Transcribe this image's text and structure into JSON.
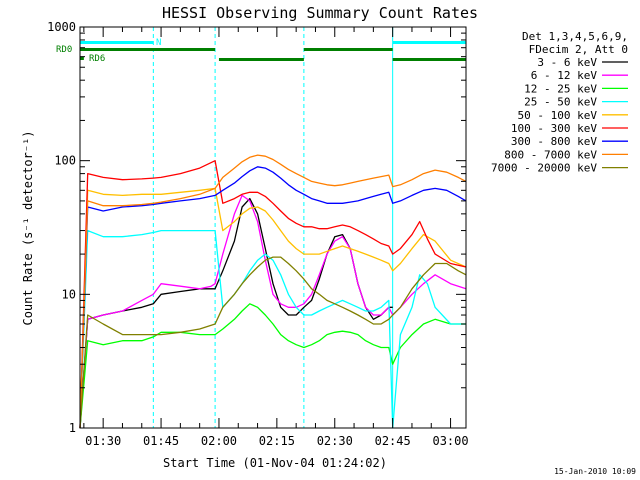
{
  "chart_data": {
    "type": "line",
    "title": "HESSI Observing Summary Count Rates",
    "xlabel": "Start Time (01-Nov-04 01:24:02)",
    "ylabel": "Count Rate (s⁻¹ detector⁻¹)",
    "yscale": "log",
    "ylim": [
      1,
      1000
    ],
    "xlim_minutes": [
      84,
      184
    ],
    "x_ticks": [
      {
        "label": "01:30",
        "minutes": 90
      },
      {
        "label": "01:45",
        "minutes": 105
      },
      {
        "label": "02:00",
        "minutes": 120
      },
      {
        "label": "02:15",
        "minutes": 135
      },
      {
        "label": "02:30",
        "minutes": 150
      },
      {
        "label": "02:45",
        "minutes": 165
      },
      {
        "label": "03:00",
        "minutes": 180
      }
    ],
    "y_ticks": [
      {
        "label": "1",
        "value": 1
      },
      {
        "label": "10",
        "value": 10
      },
      {
        "label": "100",
        "value": 100
      },
      {
        "label": "1000",
        "value": 1000
      }
    ],
    "legend_header": [
      "Det 1,3,4,5,6,9,",
      "FDecim 2, Att 0"
    ],
    "legend_position": "right",
    "grid": false,
    "timestamp": "15-Jan-2010 10:09",
    "flags": [
      {
        "label": "N",
        "color": "#00ffff",
        "segments": [
          [
            84,
            103
          ],
          [
            165,
            184
          ]
        ]
      },
      {
        "label": "RD0",
        "color": "#007f00",
        "segments": [
          [
            84,
            119
          ],
          [
            120,
            142
          ],
          [
            142,
            165
          ],
          [
            165,
            184
          ]
        ]
      },
      {
        "label": "RD6",
        "color": "#007f00",
        "segments": [
          [
            84,
            85
          ]
        ]
      }
    ],
    "vlines_solid_minutes": [
      84,
      165
    ],
    "vlines_dashed_minutes": [
      103,
      119,
      142,
      184
    ],
    "series": [
      {
        "name": "3 - 6 keV",
        "color": "#000000",
        "x": [
          84,
          86,
          90,
          95,
          100,
          103,
          105,
          110,
          115,
          118,
          119,
          121,
          124,
          126,
          128,
          130,
          132,
          134,
          136,
          138,
          140,
          142,
          144,
          146,
          148,
          150,
          152,
          154,
          156,
          158,
          160,
          162,
          164,
          165
        ],
        "y": [
          0,
          6.5,
          7,
          7.5,
          8,
          8.5,
          10,
          10.5,
          11,
          11,
          11,
          15,
          25,
          45,
          52,
          40,
          22,
          12,
          8,
          7,
          7,
          8,
          9,
          13,
          20,
          27,
          28,
          22,
          12,
          8,
          6.5,
          7,
          8,
          8
        ]
      },
      {
        "name": "6 - 12 keV",
        "color": "#ff00ff",
        "x": [
          84,
          86,
          90,
          95,
          100,
          103,
          105,
          110,
          115,
          118,
          119,
          121,
          124,
          126,
          128,
          130,
          132,
          134,
          136,
          138,
          140,
          142,
          144,
          146,
          148,
          150,
          152,
          154,
          156,
          158,
          160,
          162,
          164,
          165,
          167,
          170,
          173,
          176,
          180,
          184
        ],
        "y": [
          0,
          6.5,
          7,
          7.5,
          9,
          10,
          12,
          11.5,
          11,
          11.5,
          12,
          20,
          40,
          55,
          50,
          35,
          18,
          10,
          8.5,
          8,
          8,
          8.5,
          10,
          14,
          20,
          25,
          27,
          22,
          12,
          8,
          7,
          7,
          8,
          7,
          8,
          10,
          12,
          14,
          12,
          11
        ]
      },
      {
        "name": "12 - 25 keV",
        "color": "#00ff00",
        "x": [
          84,
          86,
          90,
          95,
          100,
          103,
          105,
          110,
          115,
          119,
          121,
          124,
          126,
          128,
          130,
          132,
          134,
          136,
          138,
          140,
          142,
          144,
          146,
          148,
          150,
          152,
          154,
          156,
          158,
          160,
          162,
          164,
          165,
          167,
          170,
          173,
          176,
          180,
          184
        ],
        "y": [
          0,
          4.5,
          4.2,
          4.5,
          4.5,
          4.8,
          5.2,
          5.2,
          5,
          5,
          5.5,
          6.5,
          7.5,
          8.5,
          8,
          7,
          6,
          5,
          4.5,
          4.2,
          4,
          4.2,
          4.5,
          5,
          5.2,
          5.3,
          5.2,
          5,
          4.5,
          4.2,
          4,
          4,
          3,
          4,
          5,
          6,
          6.5,
          6,
          6
        ]
      },
      {
        "name": "25 - 50 keV",
        "color": "#00ffff",
        "x": [
          84,
          86,
          90,
          95,
          100,
          103,
          105,
          110,
          115,
          119,
          121,
          124,
          126,
          128,
          130,
          132,
          134,
          136,
          138,
          140,
          142,
          144,
          146,
          148,
          150,
          152,
          154,
          156,
          158,
          160,
          162,
          164,
          165,
          167,
          170,
          172,
          174,
          176,
          180,
          184
        ],
        "y": [
          0,
          30,
          27,
          27,
          28,
          29,
          30,
          30,
          30,
          30,
          8,
          10,
          12,
          15,
          18,
          20,
          18,
          14,
          10,
          8,
          7,
          7,
          7.5,
          8,
          8.5,
          9,
          8.5,
          8,
          7.5,
          7.5,
          8,
          9,
          0,
          5,
          8,
          14,
          12,
          8,
          6,
          6
        ]
      },
      {
        "name": "50 - 100 keV",
        "color": "#ffbf00",
        "x": [
          84,
          86,
          90,
          95,
          100,
          103,
          105,
          110,
          115,
          119,
          121,
          124,
          126,
          128,
          130,
          132,
          134,
          136,
          138,
          140,
          142,
          144,
          146,
          148,
          150,
          152,
          154,
          156,
          158,
          160,
          162,
          164,
          165,
          167,
          170,
          173,
          176,
          180,
          184
        ],
        "y": [
          0,
          60,
          56,
          55,
          56,
          56,
          56,
          58,
          60,
          62,
          30,
          35,
          40,
          44,
          45,
          42,
          36,
          30,
          25,
          22,
          20,
          20,
          20,
          21,
          22,
          23,
          22,
          21,
          20,
          19,
          18,
          17,
          15,
          17,
          22,
          28,
          25,
          18,
          16
        ]
      },
      {
        "name": "100 - 300 keV",
        "color": "#ff0000",
        "x": [
          84,
          86,
          90,
          95,
          100,
          103,
          105,
          110,
          115,
          119,
          121,
          124,
          126,
          128,
          130,
          132,
          134,
          136,
          138,
          140,
          142,
          144,
          146,
          148,
          150,
          152,
          154,
          156,
          158,
          160,
          162,
          164,
          165,
          167,
          170,
          172,
          174,
          176,
          180,
          184
        ],
        "y": [
          0,
          80,
          75,
          72,
          73,
          74,
          75,
          80,
          88,
          100,
          48,
          52,
          56,
          58,
          58,
          54,
          48,
          42,
          37,
          34,
          32,
          32,
          31,
          31,
          32,
          33,
          32,
          30,
          28,
          26,
          24,
          23,
          20,
          22,
          28,
          35,
          26,
          20,
          17,
          16
        ]
      },
      {
        "name": "300 - 800 keV",
        "color": "#0000ff",
        "x": [
          84,
          86,
          90,
          95,
          100,
          103,
          105,
          110,
          115,
          119,
          121,
          124,
          126,
          128,
          130,
          132,
          134,
          136,
          138,
          140,
          142,
          144,
          146,
          148,
          150,
          152,
          154,
          156,
          158,
          160,
          162,
          164,
          165,
          167,
          170,
          173,
          176,
          179,
          182,
          184
        ],
        "y": [
          0,
          45,
          42,
          45,
          46,
          47,
          48,
          50,
          52,
          55,
          60,
          68,
          76,
          84,
          90,
          88,
          82,
          74,
          66,
          60,
          56,
          52,
          50,
          48,
          48,
          48,
          49,
          50,
          52,
          54,
          56,
          58,
          48,
          50,
          55,
          60,
          62,
          60,
          54,
          50
        ]
      },
      {
        "name": "800 - 7000 keV",
        "color": "#ff7f00",
        "x": [
          84,
          86,
          90,
          95,
          100,
          103,
          105,
          110,
          115,
          119,
          121,
          124,
          126,
          128,
          130,
          132,
          134,
          136,
          138,
          140,
          142,
          144,
          146,
          148,
          150,
          152,
          154,
          156,
          158,
          160,
          162,
          164,
          165,
          167,
          170,
          173,
          176,
          179,
          182,
          184
        ],
        "y": [
          0,
          50,
          46,
          46,
          47,
          48,
          49,
          52,
          56,
          62,
          75,
          88,
          98,
          106,
          110,
          108,
          102,
          94,
          86,
          80,
          75,
          70,
          68,
          66,
          65,
          66,
          68,
          70,
          72,
          74,
          76,
          78,
          64,
          66,
          72,
          80,
          85,
          82,
          75,
          70
        ]
      },
      {
        "name": "7000 - 20000 keV",
        "color": "#808000",
        "x": [
          84,
          86,
          90,
          95,
          100,
          103,
          105,
          110,
          115,
          119,
          121,
          124,
          126,
          128,
          130,
          132,
          134,
          136,
          138,
          140,
          142,
          144,
          146,
          148,
          150,
          152,
          154,
          156,
          158,
          160,
          162,
          164,
          165,
          167,
          170,
          173,
          176,
          179,
          182,
          184
        ],
        "y": [
          0,
          7,
          6,
          5,
          5,
          5,
          5,
          5.2,
          5.5,
          6,
          8,
          10,
          12,
          14,
          16,
          18,
          19,
          19,
          17,
          15,
          13,
          11,
          10,
          9,
          8.5,
          8,
          7.5,
          7,
          6.5,
          6,
          6,
          6.5,
          7,
          8,
          11,
          14,
          17,
          17,
          15,
          14
        ]
      }
    ]
  }
}
